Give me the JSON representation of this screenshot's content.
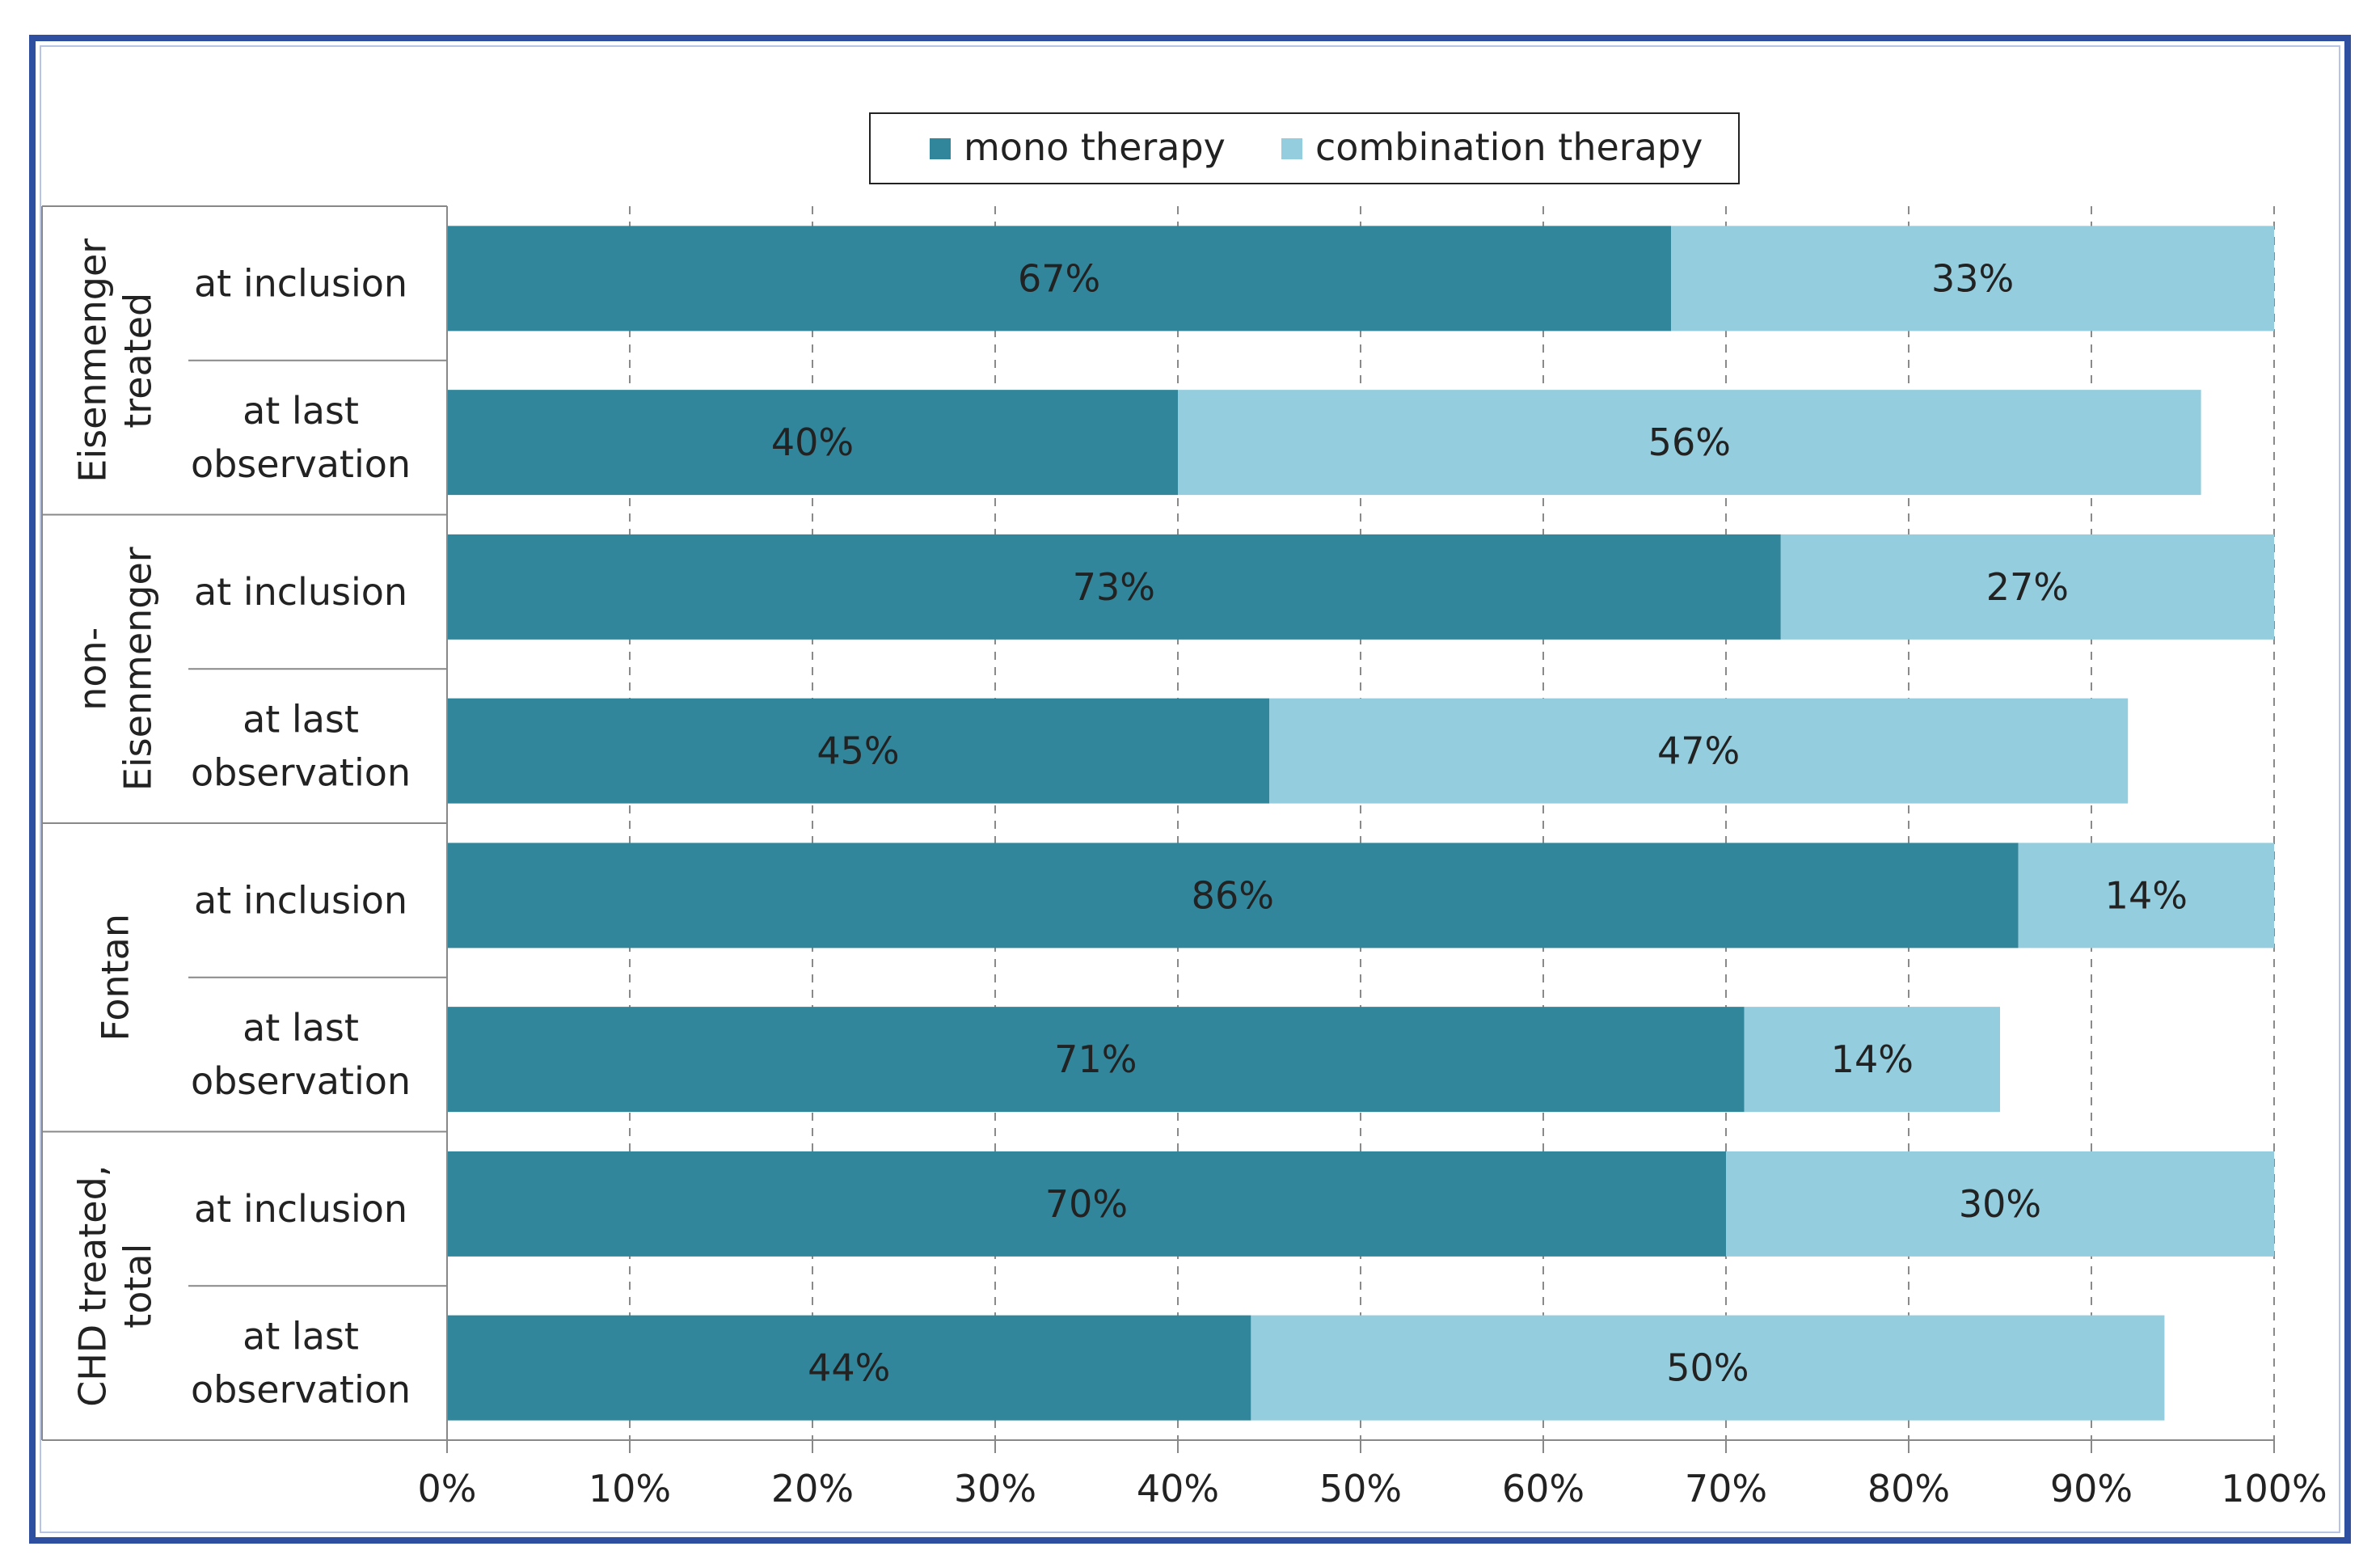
{
  "chart_data": {
    "type": "bar",
    "orientation": "horizontal",
    "stacked": true,
    "legend": {
      "position": "top-center",
      "items": [
        "mono therapy",
        "combination therapy"
      ]
    },
    "groups": [
      {
        "name": "Eisenmenger treated",
        "lines": [
          "Eisenmenger",
          "treated"
        ],
        "rows": [
          {
            "label": "at inclusion",
            "lines": [
              "at inclusion"
            ],
            "mono": 67,
            "combo": 33
          },
          {
            "label": "at last observation",
            "lines": [
              "at last",
              "observation"
            ],
            "mono": 40,
            "combo": 56
          }
        ]
      },
      {
        "name": "non-Eisenmenger",
        "lines": [
          "non-",
          "Eisenmenger"
        ],
        "rows": [
          {
            "label": "at inclusion",
            "lines": [
              "at inclusion"
            ],
            "mono": 73,
            "combo": 27
          },
          {
            "label": "at last observation",
            "lines": [
              "at last",
              "observation"
            ],
            "mono": 45,
            "combo": 47
          }
        ]
      },
      {
        "name": "Fontan",
        "lines": [
          "Fontan"
        ],
        "rows": [
          {
            "label": "at inclusion",
            "lines": [
              "at inclusion"
            ],
            "mono": 86,
            "combo": 14
          },
          {
            "label": "at last observation",
            "lines": [
              "at last",
              "observation"
            ],
            "mono": 71,
            "combo": 14
          }
        ]
      },
      {
        "name": "CHD treated, total",
        "lines": [
          "CHD treated,",
          "total"
        ],
        "rows": [
          {
            "label": "at inclusion",
            "lines": [
              "at inclusion"
            ],
            "mono": 70,
            "combo": 30
          },
          {
            "label": "at last observation",
            "lines": [
              "at last",
              "observation"
            ],
            "mono": 44,
            "combo": 50
          }
        ]
      }
    ],
    "series": [
      {
        "name": "mono therapy",
        "key": "mono",
        "values": [
          67,
          40,
          73,
          45,
          86,
          71,
          70,
          44
        ]
      },
      {
        "name": "combination therapy",
        "key": "combo",
        "values": [
          33,
          56,
          27,
          47,
          14,
          14,
          30,
          50
        ]
      }
    ],
    "xlim": [
      0,
      100
    ],
    "xticks": [
      "0%",
      "10%",
      "20%",
      "30%",
      "40%",
      "50%",
      "60%",
      "70%",
      "80%",
      "90%",
      "100%"
    ],
    "grid": "vertical dashed",
    "colors": {
      "mono": "#32869b",
      "combo": "#94cddd",
      "frame": "#2e4f9f",
      "axis": "#888888"
    }
  }
}
